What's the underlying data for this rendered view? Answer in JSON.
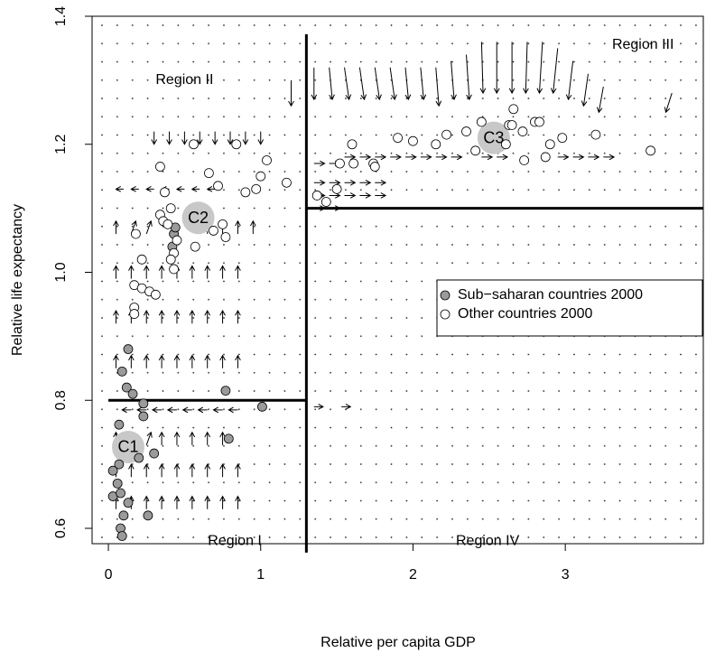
{
  "chart_data": {
    "type": "scatter",
    "xlabel": "Relative per capita GDP",
    "ylabel": "Relative life expectancy",
    "xlim": [
      -0.107,
      3.906
    ],
    "ylim": [
      0.576,
      1.4
    ],
    "xticks": [
      0,
      1,
      2,
      3
    ],
    "yticks": [
      0.6,
      0.8,
      {
        "value": 1,
        "label": "1.0"
      },
      1.2,
      1.4
    ],
    "legend": "right",
    "series": [
      {
        "name": "Sub−saharan countries 2000",
        "color": "#9a9a9a",
        "x": [
          0.09,
          0.13,
          0.12,
          0.16,
          0.23,
          0.23,
          0.07,
          0.77,
          1.01,
          0.79,
          0.3,
          0.2,
          0.07,
          0.03,
          0.06,
          0.03,
          0.08,
          0.13,
          0.26,
          0.1,
          0.08,
          0.09,
          0.43,
          0.44,
          0.42
        ],
        "values": [
          0.845,
          0.88,
          0.82,
          0.81,
          0.795,
          0.775,
          0.762,
          0.815,
          0.79,
          0.74,
          0.717,
          0.71,
          0.7,
          0.69,
          0.67,
          0.65,
          0.655,
          0.64,
          0.62,
          0.62,
          0.6,
          0.588,
          1.06,
          1.07,
          1.04
        ]
      },
      {
        "name": "Other countries 2000",
        "color": "#ffffff",
        "x": [
          0.18,
          0.37,
          0.34,
          0.36,
          0.39,
          0.45,
          0.43,
          0.41,
          0.43,
          0.22,
          0.17,
          0.22,
          0.27,
          0.31,
          0.17,
          0.17,
          0.34,
          0.41,
          0.56,
          0.66,
          0.72,
          0.75,
          0.69,
          0.77,
          0.57,
          0.9,
          0.97,
          0.84,
          1.0,
          1.04,
          1.17,
          1.37,
          1.43,
          1.5,
          1.52,
          1.6,
          1.74,
          1.75,
          1.9,
          2.0,
          2.15,
          2.22,
          2.35,
          2.45,
          2.61,
          2.63,
          2.65,
          2.66,
          2.72,
          2.73,
          2.8,
          2.83,
          2.87,
          2.9,
          2.98,
          3.2,
          3.56,
          1.61,
          2.41
        ],
        "values": [
          1.06,
          1.125,
          1.09,
          1.08,
          1.075,
          1.05,
          1.03,
          1.02,
          1.005,
          1.02,
          0.98,
          0.975,
          0.97,
          0.965,
          0.945,
          0.935,
          1.165,
          1.1,
          1.2,
          1.155,
          1.135,
          1.075,
          1.065,
          1.055,
          1.04,
          1.125,
          1.13,
          1.2,
          1.15,
          1.175,
          1.14,
          1.12,
          1.11,
          1.13,
          1.17,
          1.2,
          1.17,
          1.165,
          1.21,
          1.205,
          1.2,
          1.215,
          1.22,
          1.235,
          1.2,
          1.23,
          1.23,
          1.255,
          1.22,
          1.175,
          1.235,
          1.235,
          1.18,
          1.2,
          1.21,
          1.215,
          1.19,
          1.17,
          1.19
        ]
      }
    ],
    "clusters": [
      {
        "name": "C1",
        "x": 0.13,
        "y": 0.727
      },
      {
        "name": "C2",
        "x": 0.59,
        "y": 1.085
      },
      {
        "name": "C3",
        "x": 2.53,
        "y": 1.21
      }
    ],
    "regions": [
      {
        "name": "Region I",
        "x": 0.83,
        "y": 0.58
      },
      {
        "name": "Region II",
        "x": 0.5,
        "y": 1.3
      },
      {
        "name": "Region III",
        "x": 3.51,
        "y": 1.355
      },
      {
        "name": "Region IV",
        "x": 2.49,
        "y": 0.58
      }
    ],
    "boundaries": [
      {
        "x": [
          1.3,
          1.3
        ],
        "y": [
          0.562,
          1.372
        ]
      },
      {
        "x": [
          0,
          1.3
        ],
        "y": [
          0.8,
          0.8
        ]
      },
      {
        "x": [
          1.3,
          3.906
        ],
        "y": [
          1.1,
          1.1
        ]
      }
    ],
    "vectors": [
      [
        0.05,
        0.63,
        0,
        0.02
      ],
      [
        0.15,
        0.63,
        0,
        0.02
      ],
      [
        0.25,
        0.63,
        0,
        0.02
      ],
      [
        0.35,
        0.63,
        0,
        0.02
      ],
      [
        0.45,
        0.63,
        0,
        0.02
      ],
      [
        0.55,
        0.63,
        0,
        0.02
      ],
      [
        0.65,
        0.63,
        0,
        0.02
      ],
      [
        0.75,
        0.63,
        0,
        0.02
      ],
      [
        0.85,
        0.63,
        0,
        0.02
      ],
      [
        0.05,
        0.68,
        0,
        0.02
      ],
      [
        0.15,
        0.68,
        0,
        0.02
      ],
      [
        0.25,
        0.68,
        0,
        0.02
      ],
      [
        0.35,
        0.68,
        0,
        0.02
      ],
      [
        0.45,
        0.68,
        0,
        0.02
      ],
      [
        0.55,
        0.68,
        0,
        0.02
      ],
      [
        0.65,
        0.68,
        0,
        0.02
      ],
      [
        0.75,
        0.68,
        0,
        0.02
      ],
      [
        0.85,
        0.68,
        0,
        0.02
      ],
      [
        0.05,
        0.73,
        0,
        0.02
      ],
      [
        0.15,
        0.73,
        0,
        0.02
      ],
      [
        0.25,
        0.73,
        0.03,
        0.02
      ],
      [
        0.35,
        0.73,
        0,
        0.02
      ],
      [
        0.45,
        0.73,
        0,
        0.02
      ],
      [
        0.55,
        0.73,
        0,
        0.02
      ],
      [
        0.65,
        0.73,
        0,
        0.02
      ],
      [
        0.75,
        0.73,
        0,
        0.02
      ],
      [
        0.15,
        0.785,
        -0.06,
        0
      ],
      [
        0.25,
        0.785,
        -0.06,
        0
      ],
      [
        0.35,
        0.785,
        -0.06,
        0
      ],
      [
        0.45,
        0.785,
        -0.06,
        0
      ],
      [
        0.55,
        0.785,
        -0.06,
        0
      ],
      [
        0.65,
        0.785,
        -0.06,
        0
      ],
      [
        0.75,
        0.785,
        -0.06,
        0
      ],
      [
        0.85,
        0.785,
        -0.06,
        0
      ],
      [
        1.35,
        0.79,
        0.06,
        0
      ],
      [
        1.53,
        0.79,
        0.06,
        0
      ],
      [
        0.05,
        0.85,
        0,
        0.02
      ],
      [
        0.15,
        0.85,
        0,
        0.02
      ],
      [
        0.25,
        0.85,
        0,
        0.02
      ],
      [
        0.35,
        0.85,
        0,
        0.02
      ],
      [
        0.45,
        0.85,
        0,
        0.02
      ],
      [
        0.55,
        0.85,
        0,
        0.02
      ],
      [
        0.65,
        0.85,
        0,
        0.02
      ],
      [
        0.75,
        0.85,
        0,
        0.02
      ],
      [
        0.85,
        0.85,
        0,
        0.02
      ],
      [
        0.05,
        0.92,
        0,
        0.02
      ],
      [
        0.15,
        0.92,
        0,
        0.02
      ],
      [
        0.25,
        0.92,
        0,
        0.02
      ],
      [
        0.35,
        0.92,
        0,
        0.02
      ],
      [
        0.45,
        0.92,
        0,
        0.02
      ],
      [
        0.55,
        0.92,
        0,
        0.02
      ],
      [
        0.65,
        0.92,
        0,
        0.02
      ],
      [
        0.75,
        0.92,
        0,
        0.02
      ],
      [
        0.85,
        0.92,
        0,
        0.02
      ],
      [
        0.05,
        0.99,
        0,
        0.02
      ],
      [
        0.15,
        0.99,
        0,
        0.02
      ],
      [
        0.25,
        0.99,
        0,
        0.02
      ],
      [
        0.35,
        0.99,
        0,
        0.02
      ],
      [
        0.45,
        0.99,
        0,
        0.02
      ],
      [
        0.55,
        0.99,
        0,
        0.02
      ],
      [
        0.65,
        0.99,
        0,
        0.02
      ],
      [
        0.75,
        0.99,
        0,
        0.02
      ],
      [
        0.85,
        0.99,
        0,
        0.02
      ],
      [
        0.05,
        1.06,
        0,
        0.02
      ],
      [
        0.15,
        1.06,
        0.03,
        0.02
      ],
      [
        0.25,
        1.06,
        0.03,
        0.02
      ],
      [
        0.65,
        1.06,
        0,
        0.02
      ],
      [
        0.75,
        1.06,
        0,
        0.02
      ],
      [
        0.85,
        1.06,
        0,
        0.02
      ],
      [
        0.95,
        1.06,
        0,
        0.02
      ],
      [
        0.1,
        1.13,
        -0.05,
        0
      ],
      [
        0.2,
        1.13,
        -0.05,
        0
      ],
      [
        0.3,
        1.13,
        -0.05,
        0
      ],
      [
        0.4,
        1.13,
        -0.05,
        0
      ],
      [
        0.5,
        1.13,
        -0.05,
        0
      ],
      [
        0.6,
        1.13,
        -0.05,
        0
      ],
      [
        0.7,
        1.13,
        -0.05,
        0
      ],
      [
        0.3,
        1.22,
        0,
        -0.02
      ],
      [
        0.4,
        1.22,
        0,
        -0.02
      ],
      [
        0.5,
        1.22,
        0,
        -0.02
      ],
      [
        0.6,
        1.22,
        0,
        -0.02
      ],
      [
        0.7,
        1.22,
        0,
        -0.02
      ],
      [
        0.8,
        1.22,
        0,
        -0.02
      ],
      [
        0.9,
        1.22,
        0,
        -0.02
      ],
      [
        1.0,
        1.22,
        0,
        -0.02
      ],
      [
        1.2,
        1.3,
        0,
        -0.04
      ],
      [
        1.35,
        1.32,
        0,
        -0.05
      ],
      [
        1.45,
        1.32,
        0.02,
        -0.05
      ],
      [
        1.55,
        1.32,
        0.03,
        -0.05
      ],
      [
        1.65,
        1.32,
        0.03,
        -0.05
      ],
      [
        1.75,
        1.32,
        0.03,
        -0.05
      ],
      [
        1.85,
        1.32,
        0.03,
        -0.05
      ],
      [
        1.95,
        1.32,
        0.02,
        -0.05
      ],
      [
        2.05,
        1.32,
        0.02,
        -0.05
      ],
      [
        2.15,
        1.32,
        0.02,
        -0.06
      ],
      [
        2.25,
        1.33,
        0.02,
        -0.06
      ],
      [
        2.35,
        1.34,
        0.02,
        -0.07
      ],
      [
        2.45,
        1.36,
        0.01,
        -0.08
      ],
      [
        2.55,
        1.36,
        0,
        -0.08
      ],
      [
        2.65,
        1.36,
        0,
        -0.08
      ],
      [
        2.75,
        1.36,
        -0.01,
        -0.08
      ],
      [
        2.85,
        1.36,
        -0.02,
        -0.08
      ],
      [
        2.95,
        1.35,
        -0.03,
        -0.07
      ],
      [
        3.05,
        1.33,
        -0.03,
        -0.06
      ],
      [
        3.15,
        1.31,
        -0.03,
        -0.05
      ],
      [
        3.25,
        1.29,
        -0.03,
        -0.04
      ],
      [
        3.7,
        1.28,
        -0.04,
        -0.03
      ],
      [
        1.35,
        1.17,
        0.07,
        0
      ],
      [
        1.45,
        1.17,
        0.07,
        0
      ],
      [
        1.55,
        1.18,
        0.07,
        0
      ],
      [
        1.65,
        1.18,
        0.07,
        0
      ],
      [
        1.75,
        1.18,
        0.07,
        0
      ],
      [
        1.85,
        1.18,
        0.07,
        0
      ],
      [
        1.95,
        1.18,
        0.07,
        0
      ],
      [
        2.05,
        1.18,
        0.07,
        0
      ],
      [
        2.15,
        1.18,
        0.07,
        0
      ],
      [
        2.25,
        1.18,
        0.07,
        0
      ],
      [
        2.45,
        1.18,
        0.07,
        0
      ],
      [
        2.55,
        1.18,
        0.07,
        0
      ],
      [
        2.95,
        1.18,
        0.07,
        0
      ],
      [
        3.05,
        1.18,
        0.07,
        0
      ],
      [
        3.15,
        1.18,
        0.07,
        0
      ],
      [
        3.25,
        1.18,
        0.07,
        0
      ],
      [
        1.35,
        1.14,
        0.07,
        0
      ],
      [
        1.45,
        1.14,
        0.07,
        0
      ],
      [
        1.55,
        1.14,
        0.07,
        0
      ],
      [
        1.65,
        1.14,
        0.07,
        0
      ],
      [
        1.75,
        1.14,
        0.07,
        0
      ],
      [
        1.35,
        1.12,
        0.07,
        0
      ],
      [
        1.45,
        1.12,
        0.07,
        0
      ],
      [
        1.55,
        1.12,
        0.07,
        0
      ],
      [
        1.65,
        1.12,
        0.07,
        0
      ],
      [
        1.75,
        1.12,
        0.07,
        0
      ],
      [
        1.35,
        1.1,
        0.07,
        0
      ],
      [
        1.45,
        1.1,
        0.07,
        0
      ]
    ]
  }
}
